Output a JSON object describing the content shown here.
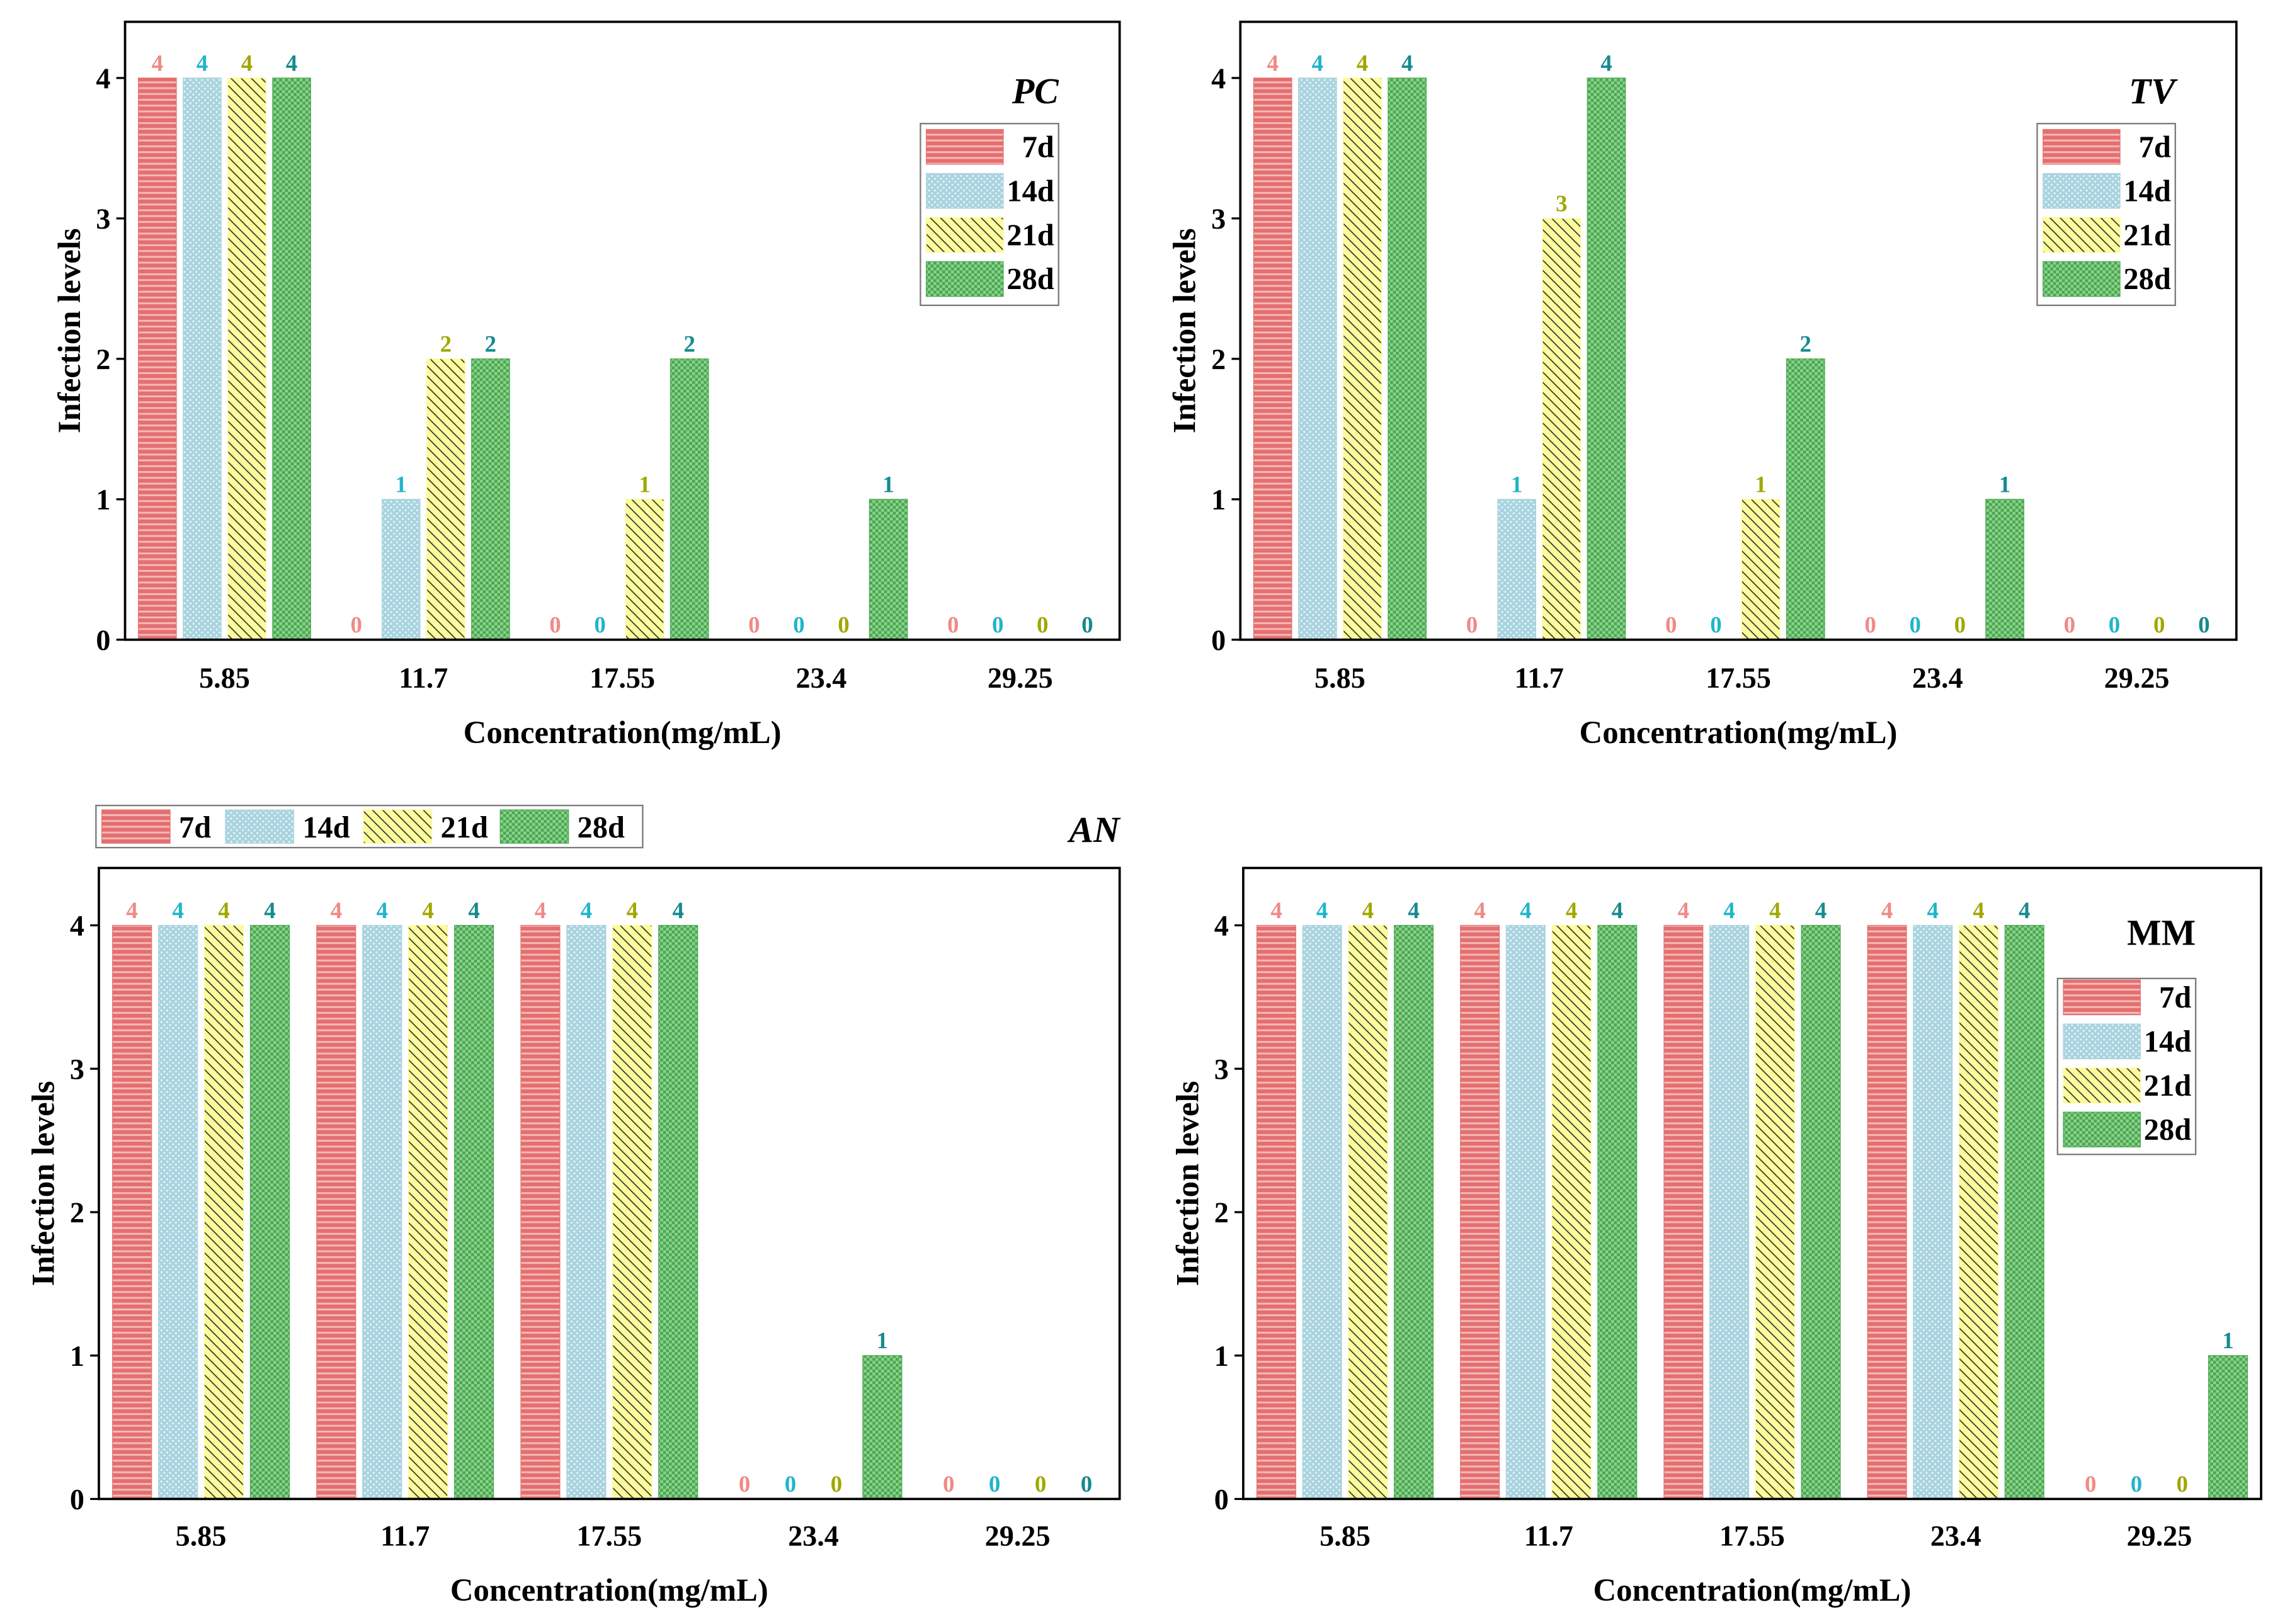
{
  "series_colors": [
    {
      "fill": "#e46f6f",
      "stripe": "#f5b9b9",
      "label": "#f08a86"
    },
    {
      "fill": "#a8d3df",
      "stripe": "#e3f1f5",
      "label": "#20b5ca"
    },
    {
      "fill": "#fdfc9c",
      "stripe": "#333333",
      "label": "#a0a800"
    },
    {
      "fill": "#47a84f",
      "stripe": "#8fd08f",
      "label": "#178a8e"
    }
  ],
  "chart_data": [
    {
      "type": "bar",
      "title": "PC",
      "categories": [
        "5.85",
        "11.7",
        "17.55",
        "23.4",
        "29.25"
      ],
      "series": [
        {
          "name": "7d",
          "values": [
            4,
            0,
            0,
            0,
            0
          ]
        },
        {
          "name": "14d",
          "values": [
            4,
            1,
            0,
            0,
            0
          ]
        },
        {
          "name": "21d",
          "values": [
            4,
            2,
            1,
            0,
            0
          ]
        },
        {
          "name": "28d",
          "values": [
            4,
            2,
            2,
            1,
            0
          ]
        }
      ],
      "xlabel": "Concentration(mg/mL)",
      "ylabel": "Infection levels",
      "ylim": [
        0,
        4.4
      ],
      "yticks": [
        0,
        1,
        2,
        3,
        4
      ],
      "legend": "top-right",
      "data_labels": true,
      "grid": false
    },
    {
      "type": "bar",
      "title": "TV",
      "categories": [
        "5.85",
        "11.7",
        "17.55",
        "23.4",
        "29.25"
      ],
      "series": [
        {
          "name": "7d",
          "values": [
            4,
            0,
            0,
            0,
            0
          ]
        },
        {
          "name": "14d",
          "values": [
            4,
            1,
            0,
            0,
            0
          ]
        },
        {
          "name": "21d",
          "values": [
            4,
            3,
            1,
            0,
            0
          ]
        },
        {
          "name": "28d",
          "values": [
            4,
            4,
            2,
            1,
            0
          ]
        }
      ],
      "xlabel": "Concentration(mg/mL)",
      "ylabel": "Infection levels",
      "ylim": [
        0,
        4.4
      ],
      "yticks": [
        0,
        1,
        2,
        3,
        4
      ],
      "legend": "top-right",
      "data_labels": true,
      "grid": false
    },
    {
      "type": "bar",
      "title": "AN",
      "categories": [
        "5.85",
        "11.7",
        "17.55",
        "23.4",
        "29.25"
      ],
      "series": [
        {
          "name": "7d",
          "values": [
            4,
            4,
            4,
            0,
            0
          ]
        },
        {
          "name": "14d",
          "values": [
            4,
            4,
            4,
            0,
            0
          ]
        },
        {
          "name": "21d",
          "values": [
            4,
            4,
            4,
            0,
            0
          ]
        },
        {
          "name": "28d",
          "values": [
            4,
            4,
            4,
            1,
            0
          ]
        }
      ],
      "xlabel": "Concentration(mg/mL)",
      "ylabel": "Infection levels",
      "ylim": [
        0,
        4.4
      ],
      "yticks": [
        0,
        1,
        2,
        3,
        4
      ],
      "legend": "top-left-outside",
      "data_labels": true,
      "grid": false
    },
    {
      "type": "bar",
      "title": "MM",
      "categories": [
        "5.85",
        "11.7",
        "17.55",
        "23.4",
        "29.25"
      ],
      "series": [
        {
          "name": "7d",
          "values": [
            4,
            4,
            4,
            4,
            0
          ]
        },
        {
          "name": "14d",
          "values": [
            4,
            4,
            4,
            4,
            0
          ]
        },
        {
          "name": "21d",
          "values": [
            4,
            4,
            4,
            4,
            0
          ]
        },
        {
          "name": "28d",
          "values": [
            4,
            4,
            4,
            4,
            1
          ]
        }
      ],
      "xlabel": "Concentration(mg/mL)",
      "ylabel": "Infection levels",
      "ylim": [
        0,
        4.4
      ],
      "yticks": [
        0,
        1,
        2,
        3,
        4
      ],
      "legend": "right",
      "data_labels": true,
      "grid": false
    }
  ]
}
